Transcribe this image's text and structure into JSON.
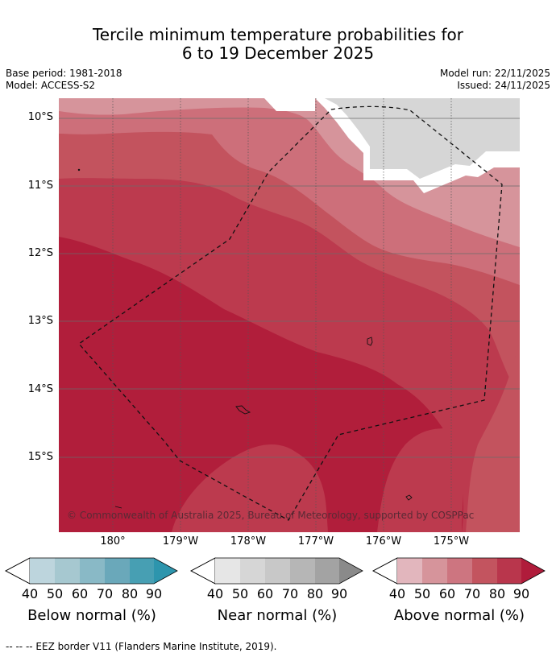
{
  "title": {
    "line1": "Tercile minimum temperature probabilities for",
    "line2": "6 to 19 December 2025"
  },
  "meta": {
    "base_period": "Base period: 1981-2018",
    "model": "Model: ACCESS-S2",
    "model_run": "Model run: 22/11/2025",
    "issued": "Issued: 24/11/2025"
  },
  "axes": {
    "lat_labels": [
      "10°S",
      "11°S",
      "12°S",
      "13°S",
      "14°S",
      "15°S"
    ],
    "lon_labels": [
      "180°",
      "179°W",
      "178°W",
      "177°W",
      "176°W",
      "175°W"
    ]
  },
  "copyright": "© Commonwealth of Australia 2025, Bureau of Meteorology, supported by COSPPac",
  "colorbars": [
    {
      "label": "Below normal (%)",
      "ticks": [
        "40",
        "50",
        "60",
        "70",
        "80",
        "90"
      ],
      "colors": [
        "#bdd5dd",
        "#a6c8d0",
        "#89b9c6",
        "#6aa8ba",
        "#479fb3",
        "#2d95ad"
      ]
    },
    {
      "label": "Near normal (%)",
      "ticks": [
        "40",
        "50",
        "60",
        "70",
        "80",
        "90"
      ],
      "colors": [
        "#e6e6e6",
        "#d6d6d6",
        "#c8c8c8",
        "#b6b6b6",
        "#a3a3a3",
        "#8a8a8a"
      ]
    },
    {
      "label": "Above normal (%)",
      "ticks": [
        "40",
        "50",
        "60",
        "70",
        "80",
        "90"
      ],
      "colors": [
        "#e2b6bd",
        "#d6949b",
        "#cd7580",
        "#c3545f",
        "#b9364c",
        "#b01c3b"
      ]
    }
  ],
  "footer": "--  --  -- EEZ border V11 (Flanders Marine Institute, 2019).",
  "colors": {
    "above_50": "#d6949b",
    "above_60": "#cd6f7a",
    "above_70": "#c3535e",
    "above_80": "#bc3a4e",
    "above_90": "#b11e3b",
    "near_50": "#d6d6d6"
  }
}
